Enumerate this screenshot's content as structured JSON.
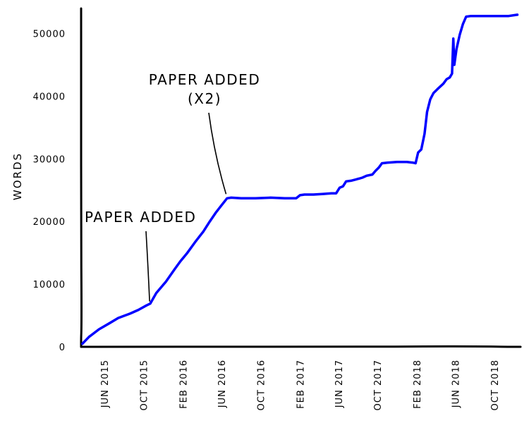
{
  "chart_data": {
    "type": "line",
    "title": "",
    "xlabel": "",
    "ylabel": "WORDS",
    "ylim": [
      0,
      54000
    ],
    "xlim": [
      "2015-03-20",
      "2018-12-22"
    ],
    "yticks": [
      0,
      10000,
      20000,
      30000,
      40000,
      50000
    ],
    "xticks": [
      {
        "date": "2015-06-01",
        "label": "JUN 2015"
      },
      {
        "date": "2015-10-01",
        "label": "OCT 2015"
      },
      {
        "date": "2016-02-01",
        "label": "FEB 2016"
      },
      {
        "date": "2016-06-01",
        "label": "JUN 2016"
      },
      {
        "date": "2016-10-01",
        "label": "OCT 2016"
      },
      {
        "date": "2017-02-01",
        "label": "FEB 2017"
      },
      {
        "date": "2017-06-01",
        "label": "JUN 2017"
      },
      {
        "date": "2017-10-01",
        "label": "OCT 2017"
      },
      {
        "date": "2018-02-01",
        "label": "FEB 2018"
      },
      {
        "date": "2018-06-01",
        "label": "JUN 2018"
      },
      {
        "date": "2018-10-01",
        "label": "OCT 2018"
      }
    ],
    "grid": false,
    "style": "xkcd",
    "series": [
      {
        "color": "#0000ff",
        "points": [
          [
            "2015-03-24",
            500
          ],
          [
            "2015-04-14",
            1600
          ],
          [
            "2015-05-15",
            2800
          ],
          [
            "2015-06-18",
            3800
          ],
          [
            "2015-07-14",
            4600
          ],
          [
            "2015-08-20",
            5300
          ],
          [
            "2015-09-15",
            5900
          ],
          [
            "2015-10-10",
            6600
          ],
          [
            "2015-10-22",
            6900
          ],
          [
            "2015-11-10",
            8600
          ],
          [
            "2015-12-10",
            10400
          ],
          [
            "2016-01-05",
            12300
          ],
          [
            "2016-01-25",
            13700
          ],
          [
            "2016-02-15",
            15000
          ],
          [
            "2016-03-10",
            16700
          ],
          [
            "2016-04-05",
            18400
          ],
          [
            "2016-04-25",
            20000
          ],
          [
            "2016-05-15",
            21500
          ],
          [
            "2016-06-01",
            22600
          ],
          [
            "2016-06-18",
            23700
          ],
          [
            "2016-07-01",
            23800
          ],
          [
            "2016-08-01",
            23700
          ],
          [
            "2016-09-15",
            23700
          ],
          [
            "2016-11-01",
            23800
          ],
          [
            "2016-12-15",
            23700
          ],
          [
            "2017-01-20",
            23700
          ],
          [
            "2017-02-01",
            24200
          ],
          [
            "2017-02-15",
            24300
          ],
          [
            "2017-03-15",
            24300
          ],
          [
            "2017-04-15",
            24400
          ],
          [
            "2017-05-10",
            24500
          ],
          [
            "2017-05-25",
            24500
          ],
          [
            "2017-06-05",
            25400
          ],
          [
            "2017-06-15",
            25600
          ],
          [
            "2017-06-25",
            26400
          ],
          [
            "2017-07-10",
            26500
          ],
          [
            "2017-07-25",
            26700
          ],
          [
            "2017-08-15",
            27000
          ],
          [
            "2017-08-28",
            27300
          ],
          [
            "2017-09-15",
            27500
          ],
          [
            "2017-09-25",
            28100
          ],
          [
            "2017-10-05",
            28600
          ],
          [
            "2017-10-15",
            29300
          ],
          [
            "2017-11-01",
            29400
          ],
          [
            "2017-12-01",
            29500
          ],
          [
            "2018-01-01",
            29500
          ],
          [
            "2018-01-20",
            29400
          ],
          [
            "2018-01-28",
            29300
          ],
          [
            "2018-02-05",
            31000
          ],
          [
            "2018-02-15",
            31500
          ],
          [
            "2018-02-25",
            34000
          ],
          [
            "2018-03-05",
            37500
          ],
          [
            "2018-03-15",
            39500
          ],
          [
            "2018-03-25",
            40500
          ],
          [
            "2018-04-10",
            41300
          ],
          [
            "2018-04-25",
            42000
          ],
          [
            "2018-05-05",
            42700
          ],
          [
            "2018-05-15",
            43000
          ],
          [
            "2018-05-22",
            43600
          ],
          [
            "2018-05-26",
            49200
          ],
          [
            "2018-05-29",
            45000
          ],
          [
            "2018-06-05",
            47500
          ],
          [
            "2018-06-15",
            49800
          ],
          [
            "2018-06-25",
            51500
          ],
          [
            "2018-07-05",
            52700
          ],
          [
            "2018-07-20",
            52800
          ],
          [
            "2018-08-15",
            52800
          ],
          [
            "2018-09-15",
            52800
          ],
          [
            "2018-10-15",
            52800
          ],
          [
            "2018-11-15",
            52800
          ],
          [
            "2018-12-12",
            53000
          ]
        ]
      }
    ],
    "annotations": [
      {
        "lines": [
          "PAPER ADDED"
        ],
        "target": [
          "2015-10-20",
          6900
        ],
        "anchor": "start"
      },
      {
        "lines": [
          "PAPER ADDED",
          "(X2)"
        ],
        "target": [
          "2016-06-15",
          23700
        ],
        "anchor": "middle"
      }
    ]
  }
}
